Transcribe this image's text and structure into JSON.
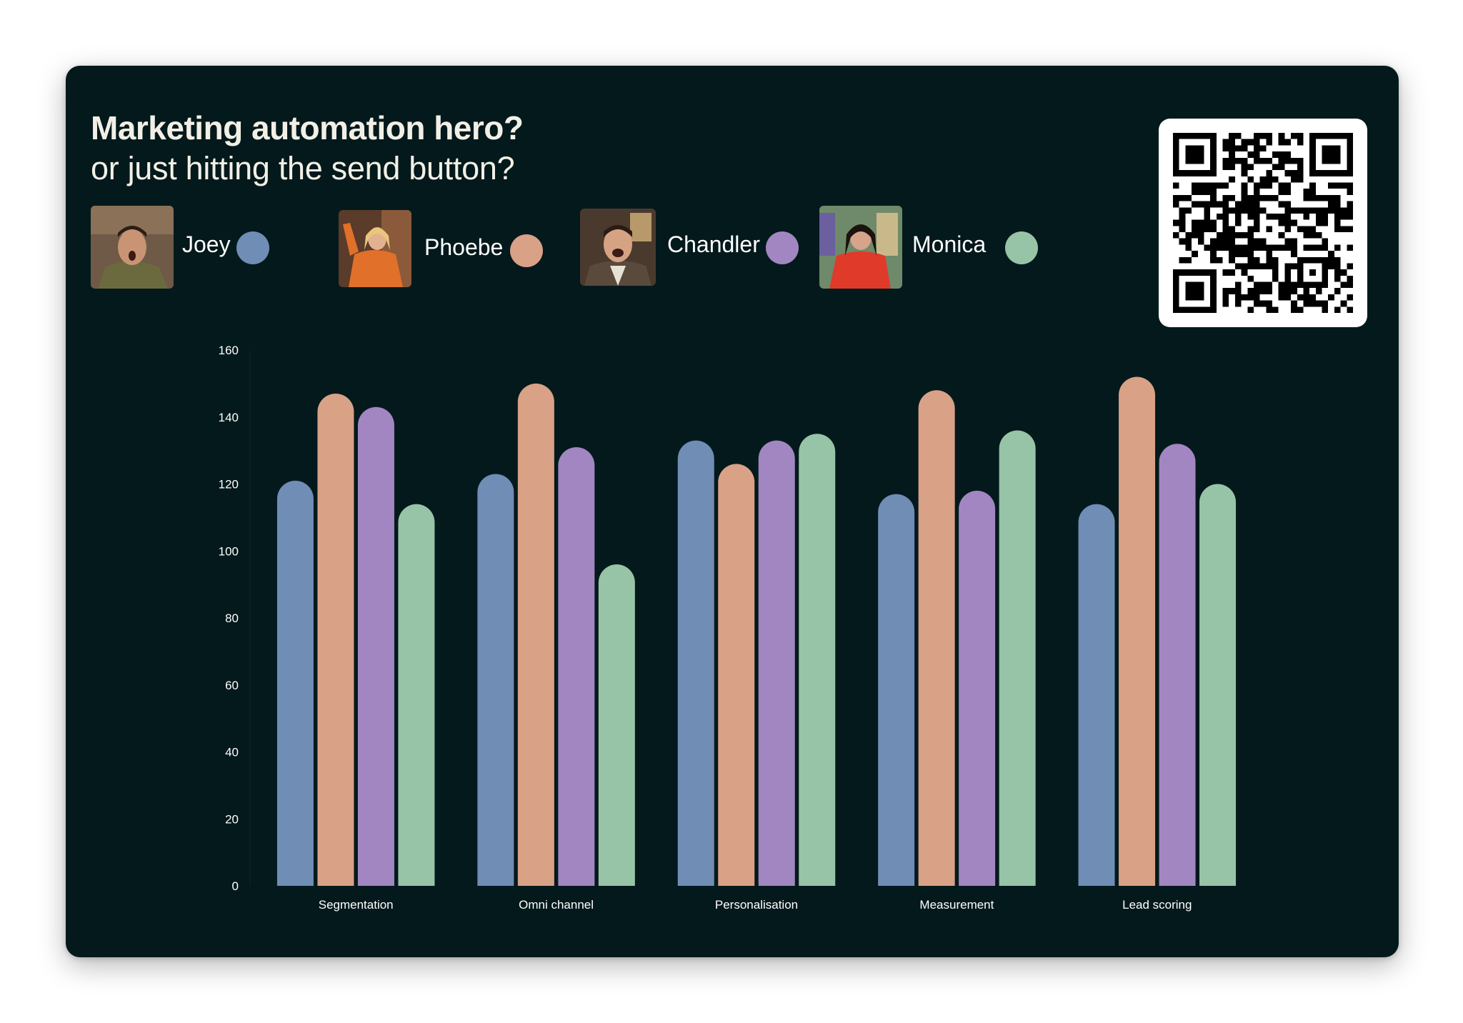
{
  "header": {
    "title": "Marketing automation hero?",
    "subtitle": "or just hitting the send button?"
  },
  "legend": [
    {
      "name": "Joey",
      "color": "#6f8db5",
      "photo": "joey-photo"
    },
    {
      "name": "Phoebe",
      "color": "#d9a186",
      "photo": "phoebe-photo"
    },
    {
      "name": "Chandler",
      "color": "#a286c1",
      "photo": "chandler-photo"
    },
    {
      "name": "Monica",
      "color": "#97c4a6",
      "photo": "monica-photo"
    }
  ],
  "qr": {
    "icon": "qr-code-icon"
  },
  "chart_data": {
    "type": "bar",
    "categories": [
      "Segmentation",
      "Omni channel",
      "Personalisation",
      "Measurement",
      "Lead scoring"
    ],
    "series": [
      {
        "name": "Joey",
        "color": "#6f8db5",
        "values": [
          121,
          123,
          133,
          117,
          114
        ]
      },
      {
        "name": "Phoebe",
        "color": "#d9a186",
        "values": [
          147,
          150,
          126,
          148,
          152
        ]
      },
      {
        "name": "Chandler",
        "color": "#a286c1",
        "values": [
          143,
          131,
          133,
          118,
          132
        ]
      },
      {
        "name": "Monica",
        "color": "#97c4a6",
        "values": [
          114,
          96,
          135,
          136,
          120
        ]
      }
    ],
    "ylim": [
      0,
      160
    ],
    "yticks": [
      0,
      20,
      40,
      60,
      80,
      100,
      120,
      140,
      160
    ],
    "xlabel": "",
    "ylabel": "",
    "grid": false,
    "legend_position": "top-left"
  }
}
